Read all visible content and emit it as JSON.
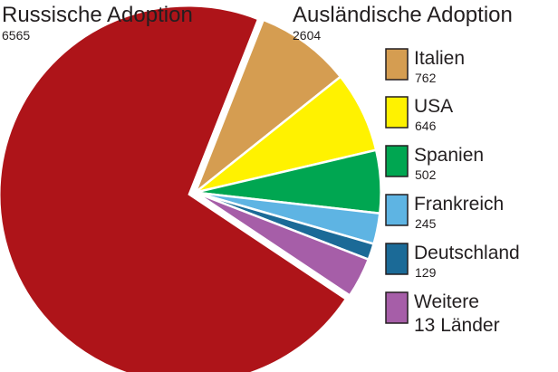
{
  "chart_data": {
    "type": "pie",
    "groups": [
      {
        "name": "Russische Adoption",
        "total": "6565"
      },
      {
        "name": "Ausländische Adoption",
        "total": "2604"
      }
    ],
    "slices": [
      {
        "label": "Russische Adoption",
        "value": 6565,
        "color": "#ae1419",
        "group": 0
      },
      {
        "label": "Italien",
        "value": 762,
        "color": "#d59d51",
        "group": 1
      },
      {
        "label": "USA",
        "value": 646,
        "color": "#fff200",
        "group": 1
      },
      {
        "label": "Spanien",
        "value": 502,
        "color": "#00a651",
        "group": 1
      },
      {
        "label": "Frankreich",
        "value": 245,
        "color": "#5eb4e3",
        "group": 1
      },
      {
        "label": "Deutschland",
        "value": 129,
        "color": "#1b6a97",
        "group": 1
      },
      {
        "label": "Weitere 13 Länder",
        "value": 320,
        "color": "#a65ea8",
        "group": 1
      }
    ],
    "legend": [
      {
        "label": "Italien",
        "value": "762",
        "color": "#d59d51"
      },
      {
        "label": "USA",
        "value": "646",
        "color": "#fff200"
      },
      {
        "label": "Spanien",
        "value": "502",
        "color": "#00a651"
      },
      {
        "label": "Frankreich",
        "value": "245",
        "color": "#5eb4e3"
      },
      {
        "label": "Deutschland",
        "value": "129",
        "color": "#1b6a97"
      },
      {
        "label_line1": "Weitere",
        "label_line2": "13 Länder",
        "color": "#a65ea8"
      }
    ]
  }
}
